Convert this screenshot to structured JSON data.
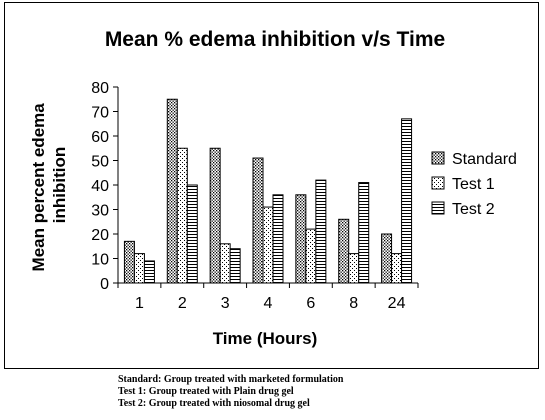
{
  "chart_data": {
    "type": "bar",
    "title": "Mean % edema inhibition v/s Time",
    "xlabel": "Time (Hours)",
    "ylabel": "Mean percent edema inhibition",
    "ylim": [
      0,
      80
    ],
    "yticks": [
      0,
      10,
      20,
      30,
      40,
      50,
      60,
      70,
      80
    ],
    "categories": [
      "1",
      "2",
      "3",
      "4",
      "6",
      "8",
      "24"
    ],
    "series": [
      {
        "name": "Standard",
        "values": [
          17,
          75,
          55,
          51,
          36,
          26,
          20
        ],
        "pattern": "dots-dense"
      },
      {
        "name": "Test 1",
        "values": [
          12,
          55,
          16,
          31,
          22,
          12,
          12
        ],
        "pattern": "dots-sparse"
      },
      {
        "name": "Test 2",
        "values": [
          9,
          40,
          14,
          36,
          42,
          41,
          67
        ],
        "pattern": "hlines"
      }
    ],
    "grid": false,
    "legend": "right"
  },
  "notes": [
    "Standard:  Group treated with marketed formulation",
    "Test 1:  Group treated with Plain drug gel",
    "Test 2:  Group treated with niosomal drug gel"
  ]
}
